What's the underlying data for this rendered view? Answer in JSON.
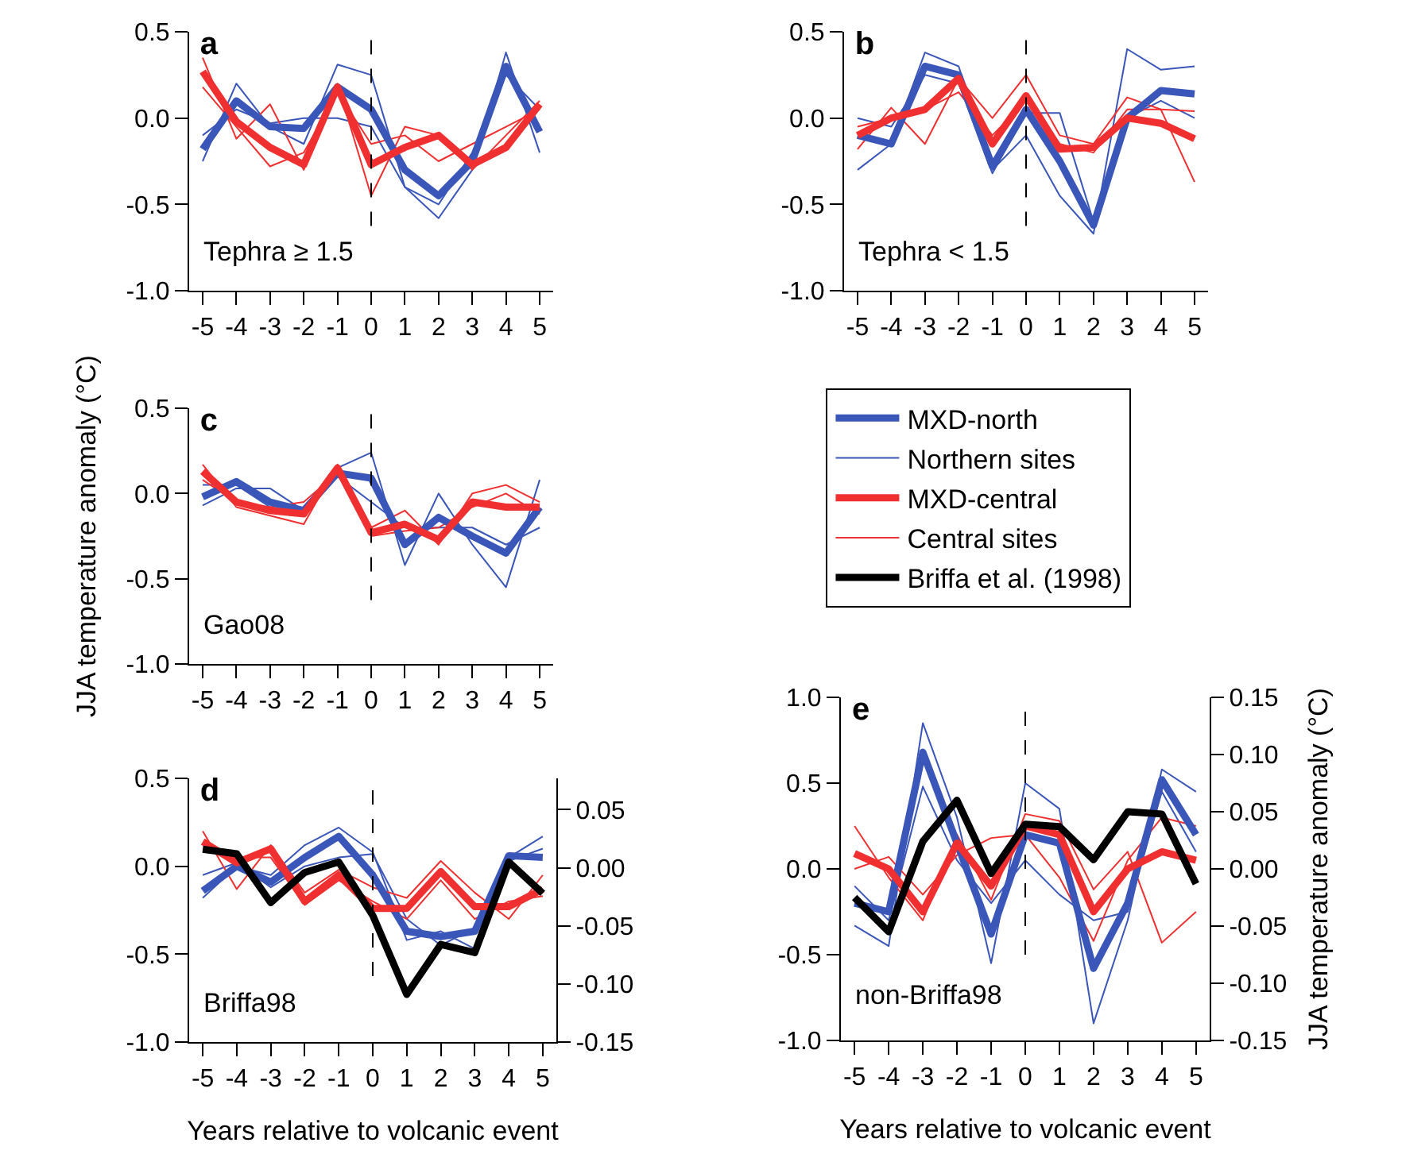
{
  "chart_data": [
    {
      "type": "line",
      "title": "a",
      "annotations": [
        "Tephra ≥ 1.5"
      ],
      "x": [
        -5,
        -4,
        -3,
        -2,
        -1,
        0,
        1,
        2,
        3,
        4,
        5
      ],
      "xlim": [
        -5.4,
        5.4
      ],
      "xticks": [
        -5,
        -4,
        -3,
        -2,
        -1,
        0,
        1,
        2,
        3,
        4,
        5
      ],
      "ylim": [
        -1,
        0.5
      ],
      "yticks": [
        {
          "value": -1,
          "label": "-1.0"
        },
        {
          "value": -0.5,
          "label": "-0.5"
        },
        {
          "value": 0,
          "label": "0.0"
        },
        {
          "value": 0.5,
          "label": "0.5"
        }
      ],
      "grid": false,
      "marker": "none",
      "ref_lines": [
        {
          "axis": "x",
          "value": 0,
          "color": "#000000",
          "line_style": "dashed"
        }
      ],
      "series": [
        {
          "color": "#3a56b8",
          "values": [
            -0.25,
            0.2,
            -0.05,
            -0.15,
            0.31,
            0.25,
            -0.4,
            -0.58,
            -0.3,
            0.38,
            -0.2
          ]
        },
        {
          "color": "#3a56b8",
          "values": [
            -0.1,
            0.05,
            -0.03,
            0.0,
            0.0,
            -0.05,
            -0.4,
            -0.5,
            -0.2,
            0.25,
            0.05
          ]
        },
        {
          "color": "#f03030",
          "values": [
            0.35,
            -0.12,
            0.08,
            -0.3,
            0.2,
            -0.45,
            -0.05,
            -0.1,
            -0.3,
            -0.1,
            0.1
          ]
        },
        {
          "color": "#f03030",
          "values": [
            0.18,
            -0.05,
            -0.28,
            -0.2,
            0.15,
            -0.15,
            -0.1,
            -0.25,
            -0.15,
            -0.05,
            0.05
          ]
        },
        {
          "color": "#3a56b8",
          "values": [
            -0.18,
            0.1,
            -0.05,
            -0.06,
            0.18,
            0.05,
            -0.3,
            -0.45,
            -0.25,
            0.3,
            -0.08
          ]
        },
        {
          "color": "#f03030",
          "values": [
            0.27,
            -0.02,
            -0.17,
            -0.27,
            0.18,
            -0.27,
            -0.17,
            -0.1,
            -0.27,
            -0.17,
            0.08
          ]
        }
      ]
    },
    {
      "type": "line",
      "title": "b",
      "annotations": [
        "Tephra < 1.5"
      ],
      "x": [
        -5,
        -4,
        -3,
        -2,
        -1,
        0,
        1,
        2,
        3,
        4,
        5
      ],
      "xlim": [
        -5.4,
        5.4
      ],
      "xticks": [
        -5,
        -4,
        -3,
        -2,
        -1,
        0,
        1,
        2,
        3,
        4,
        5
      ],
      "ylim": [
        -1,
        0.5
      ],
      "yticks": [
        {
          "value": -1,
          "label": "-1.0"
        },
        {
          "value": -0.5,
          "label": "-0.5"
        },
        {
          "value": 0,
          "label": "0.0"
        },
        {
          "value": 0.5,
          "label": "0.5"
        }
      ],
      "grid": false,
      "marker": "none",
      "ref_lines": [
        {
          "axis": "x",
          "value": 0,
          "color": "#000000",
          "line_style": "dashed"
        }
      ],
      "series": [
        {
          "color": "#3a56b8",
          "values": [
            -0.3,
            -0.15,
            0.38,
            0.3,
            -0.3,
            -0.1,
            -0.45,
            -0.67,
            0.4,
            0.28,
            0.3
          ]
        },
        {
          "color": "#3a56b8",
          "values": [
            0.0,
            -0.05,
            0.25,
            0.2,
            -0.32,
            0.03,
            0.03,
            -0.6,
            0.0,
            0.1,
            0.0
          ]
        },
        {
          "color": "#f03030",
          "values": [
            -0.18,
            0.06,
            -0.15,
            0.23,
            0.0,
            0.25,
            -0.1,
            -0.15,
            0.12,
            0.05,
            -0.37
          ]
        },
        {
          "color": "#f03030",
          "values": [
            -0.05,
            0.0,
            0.05,
            0.15,
            -0.1,
            0.1,
            -0.15,
            -0.2,
            0.05,
            0.05,
            0.04
          ]
        },
        {
          "color": "#3a56b8",
          "values": [
            -0.1,
            -0.15,
            0.3,
            0.25,
            -0.28,
            0.05,
            -0.25,
            -0.62,
            0.0,
            0.16,
            0.14
          ]
        },
        {
          "color": "#f03030",
          "values": [
            -0.1,
            0.0,
            0.05,
            0.23,
            -0.15,
            0.13,
            -0.18,
            -0.17,
            0.0,
            -0.03,
            -0.12
          ]
        }
      ]
    },
    {
      "type": "line",
      "title": "c",
      "ylabel": "JJA temperature anomaly (°C)",
      "annotations": [
        "Gao08"
      ],
      "x": [
        -5,
        -4,
        -3,
        -2,
        -1,
        0,
        1,
        2,
        3,
        4,
        5
      ],
      "xlim": [
        -5.4,
        5.4
      ],
      "xticks": [
        -5,
        -4,
        -3,
        -2,
        -1,
        0,
        1,
        2,
        3,
        4,
        5
      ],
      "ylim": [
        -1,
        0.5
      ],
      "yticks": [
        {
          "value": -1,
          "label": "-1.0"
        },
        {
          "value": -0.5,
          "label": "-0.5"
        },
        {
          "value": 0,
          "label": "0.0"
        },
        {
          "value": 0.5,
          "label": "0.5"
        }
      ],
      "grid": false,
      "marker": "none",
      "ref_lines": [
        {
          "axis": "x",
          "value": 0,
          "color": "#000000",
          "line_style": "dashed"
        }
      ],
      "series": [
        {
          "color": "#3a56b8",
          "values": [
            -0.07,
            0.03,
            0.03,
            -0.1,
            0.15,
            0.24,
            -0.42,
            0.0,
            -0.3,
            -0.55,
            0.08
          ]
        },
        {
          "color": "#3a56b8",
          "values": [
            0.05,
            0.05,
            -0.08,
            -0.12,
            0.1,
            -0.05,
            -0.2,
            -0.2,
            -0.2,
            -0.3,
            -0.2
          ]
        },
        {
          "color": "#f03030",
          "values": [
            0.17,
            -0.08,
            -0.13,
            -0.18,
            0.17,
            -0.2,
            -0.1,
            -0.3,
            0.0,
            0.05,
            -0.05
          ]
        },
        {
          "color": "#f03030",
          "values": [
            0.08,
            -0.05,
            -0.08,
            -0.05,
            0.12,
            -0.25,
            -0.22,
            -0.2,
            -0.08,
            0.0,
            -0.12
          ]
        },
        {
          "color": "#3a56b8",
          "values": [
            -0.02,
            0.07,
            -0.05,
            -0.1,
            0.12,
            0.09,
            -0.3,
            -0.14,
            -0.25,
            -0.35,
            -0.08
          ]
        },
        {
          "color": "#f03030",
          "values": [
            0.13,
            -0.05,
            -0.1,
            -0.12,
            0.15,
            -0.23,
            -0.18,
            -0.27,
            -0.05,
            -0.08,
            -0.08
          ]
        }
      ]
    },
    {
      "type": "line",
      "title": "d",
      "xlabel": "Years relative to volcanic event",
      "annotations": [
        "Briffa98"
      ],
      "x": [
        -5,
        -4,
        -3,
        -2,
        -1,
        0,
        1,
        2,
        3,
        4,
        5
      ],
      "xlim": [
        -5.4,
        5.4
      ],
      "xticks": [
        -5,
        -4,
        -3,
        -2,
        -1,
        0,
        1,
        2,
        3,
        4,
        5
      ],
      "ylim": [
        -1,
        0.5
      ],
      "yticks": [
        {
          "value": -1,
          "label": "-1.0"
        },
        {
          "value": -0.5,
          "label": "-0.5"
        },
        {
          "value": 0,
          "label": "0.0"
        },
        {
          "value": 0.5,
          "label": "0.5"
        }
      ],
      "y2lim": [
        -0.15,
        0.077
      ],
      "y2ticks": [
        {
          "value": -0.15,
          "label": "-0.15"
        },
        {
          "value": -0.1,
          "label": "-0.10"
        },
        {
          "value": -0.05,
          "label": "-0.05"
        },
        {
          "value": 0,
          "label": "0.00"
        },
        {
          "value": 0.05,
          "label": "0.05"
        }
      ],
      "grid": false,
      "marker": "none",
      "ref_lines": [
        {
          "axis": "x",
          "value": 0,
          "color": "#000000",
          "line_style": "dashed"
        }
      ],
      "series": [
        {
          "color": "#3a56b8",
          "values": [
            -0.18,
            0.0,
            -0.05,
            0.12,
            0.22,
            0.08,
            -0.42,
            -0.37,
            -0.47,
            0.05,
            0.17
          ]
        },
        {
          "color": "#3a56b8",
          "values": [
            -0.05,
            0.02,
            -0.12,
            0.0,
            0.05,
            0.07,
            -0.3,
            -0.45,
            -0.35,
            0.03,
            0.1
          ]
        },
        {
          "color": "#f03030",
          "values": [
            0.2,
            -0.13,
            0.12,
            -0.15,
            -0.02,
            -0.12,
            -0.18,
            0.03,
            -0.15,
            -0.3,
            -0.05
          ]
        },
        {
          "color": "#f03030",
          "values": [
            0.1,
            0.05,
            0.05,
            -0.22,
            -0.08,
            -0.2,
            -0.3,
            -0.08,
            -0.3,
            -0.2,
            -0.17
          ]
        },
        {
          "color": "#3a56b8",
          "values": [
            -0.14,
            0.0,
            -0.09,
            0.05,
            0.17,
            -0.05,
            -0.37,
            -0.4,
            -0.37,
            0.06,
            0.05
          ]
        },
        {
          "color": "#f03030",
          "values": [
            0.14,
            0.02,
            0.1,
            -0.2,
            -0.05,
            -0.24,
            -0.24,
            -0.03,
            -0.23,
            -0.23,
            -0.13
          ]
        },
        {
          "axis": "y2",
          "color": "#000000",
          "values": [
            0.016,
            0.012,
            -0.03,
            -0.004,
            0.005,
            -0.041,
            -0.109,
            -0.066,
            -0.073,
            0.005,
            -0.022
          ]
        }
      ]
    },
    {
      "type": "line",
      "title": "e",
      "xlabel": "Years relative to volcanic event",
      "y2label": "JJA temperature anomaly (°C)",
      "annotations": [
        "non-Briffa98"
      ],
      "legend": "top",
      "x": [
        -5,
        -4,
        -3,
        -2,
        -1,
        0,
        1,
        2,
        3,
        4,
        5
      ],
      "xlim": [
        -5.4,
        5.4
      ],
      "xticks": [
        -5,
        -4,
        -3,
        -2,
        -1,
        0,
        1,
        2,
        3,
        4,
        5
      ],
      "ylim": [
        -1,
        1
      ],
      "yticks": [
        {
          "value": -1,
          "label": "-1.0"
        },
        {
          "value": -0.5,
          "label": "-0.5"
        },
        {
          "value": 0,
          "label": "0.0"
        },
        {
          "value": 0.5,
          "label": "0.5"
        },
        {
          "value": 1,
          "label": "1.0"
        }
      ],
      "y2lim": [
        -0.15,
        0.15
      ],
      "y2ticks": [
        {
          "value": -0.15,
          "label": "-0.15"
        },
        {
          "value": -0.1,
          "label": "-0.10"
        },
        {
          "value": -0.05,
          "label": "-0.05"
        },
        {
          "value": 0,
          "label": "0.00"
        },
        {
          "value": 0.05,
          "label": "0.05"
        },
        {
          "value": 0.1,
          "label": "0.10"
        },
        {
          "value": 0.15,
          "label": "0.15"
        }
      ],
      "grid": false,
      "marker": "none",
      "ref_lines": [
        {
          "axis": "x",
          "value": 0,
          "color": "#000000",
          "line_style": "dashed"
        }
      ],
      "series": [
        {
          "name": "Northern sites",
          "color": "#3a56b8",
          "values": [
            -0.33,
            -0.45,
            0.85,
            0.3,
            -0.55,
            0.5,
            0.35,
            -0.9,
            -0.3,
            0.58,
            0.45
          ]
        },
        {
          "color": "#3a56b8",
          "values": [
            -0.1,
            -0.3,
            0.48,
            0.05,
            -0.2,
            0.05,
            -0.15,
            -0.3,
            -0.25,
            0.45,
            0.1
          ]
        },
        {
          "name": "Central sites",
          "color": "#f03030",
          "values": [
            0.25,
            -0.05,
            -0.3,
            0.2,
            -0.18,
            0.32,
            0.28,
            -0.12,
            0.1,
            -0.43,
            -0.25
          ]
        },
        {
          "color": "#f03030",
          "values": [
            0.0,
            0.07,
            -0.15,
            0.08,
            0.18,
            0.2,
            -0.05,
            -0.42,
            0.05,
            0.3,
            0.25
          ]
        },
        {
          "name": "MXD-north",
          "color": "#3a56b8",
          "values": [
            -0.2,
            -0.25,
            0.68,
            0.15,
            -0.38,
            0.2,
            0.15,
            -0.58,
            -0.2,
            0.52,
            0.2
          ]
        },
        {
          "name": "MXD-central",
          "color": "#f03030",
          "values": [
            0.09,
            0.0,
            -0.25,
            0.15,
            -0.1,
            0.25,
            0.2,
            -0.25,
            0.0,
            0.1,
            0.05
          ]
        },
        {
          "name": "Briffa et al. (1998)",
          "axis": "y2",
          "color": "#000000",
          "values": [
            -0.025,
            -0.055,
            0.024,
            0.06,
            -0.004,
            0.039,
            0.037,
            0.008,
            0.05,
            0.048,
            -0.013
          ]
        }
      ]
    }
  ]
}
